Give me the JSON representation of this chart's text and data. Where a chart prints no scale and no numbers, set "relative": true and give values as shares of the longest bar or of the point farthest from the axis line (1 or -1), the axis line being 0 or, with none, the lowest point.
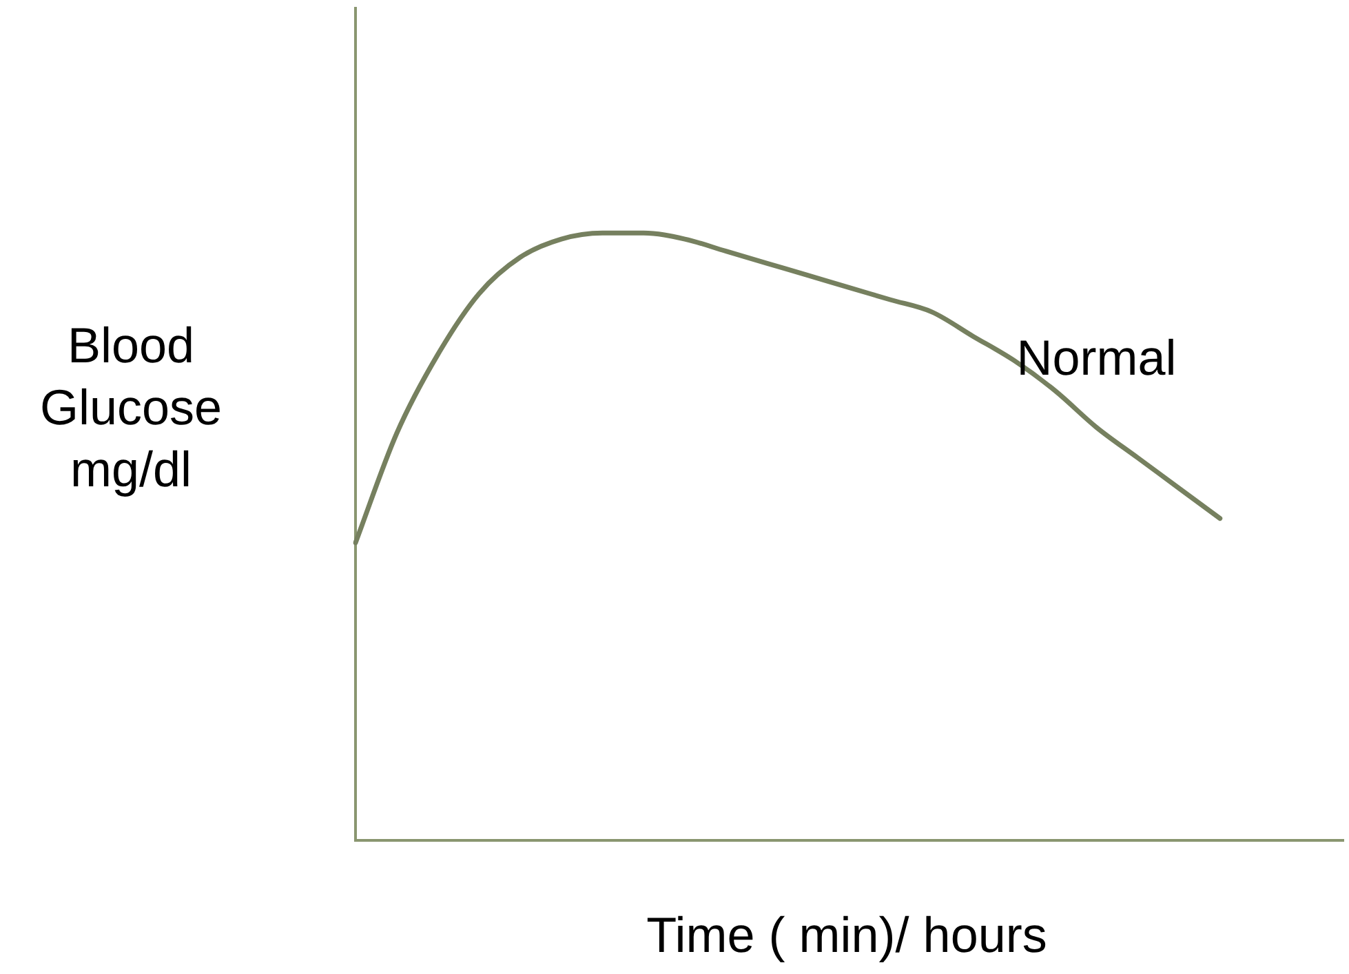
{
  "chart_data": {
    "type": "line",
    "relative": true,
    "xlabel": "Time ( min)/ hours",
    "ylabel": "Blood Glucose mg/dl",
    "categories": [
      null,
      null,
      null,
      null,
      null,
      null,
      null,
      null,
      null,
      null,
      null,
      null,
      null,
      null,
      null,
      null,
      null,
      null,
      null,
      null,
      null,
      null,
      null,
      null,
      null
    ],
    "series": [
      {
        "name": "Normal",
        "color": "#76805f",
        "values": [
          0.49,
          0.67,
          0.8,
          0.9,
          0.96,
          0.99,
          1,
          1,
          0.99,
          0.97,
          0.95,
          0.93,
          0.91,
          0.89,
          0.87,
          0.83,
          0.79,
          0.74,
          0.68,
          0.63,
          0.58,
          0.53,
          null,
          null,
          null
        ]
      }
    ],
    "grid": false,
    "legend": false,
    "marker": "none",
    "line_style": "solid"
  }
}
